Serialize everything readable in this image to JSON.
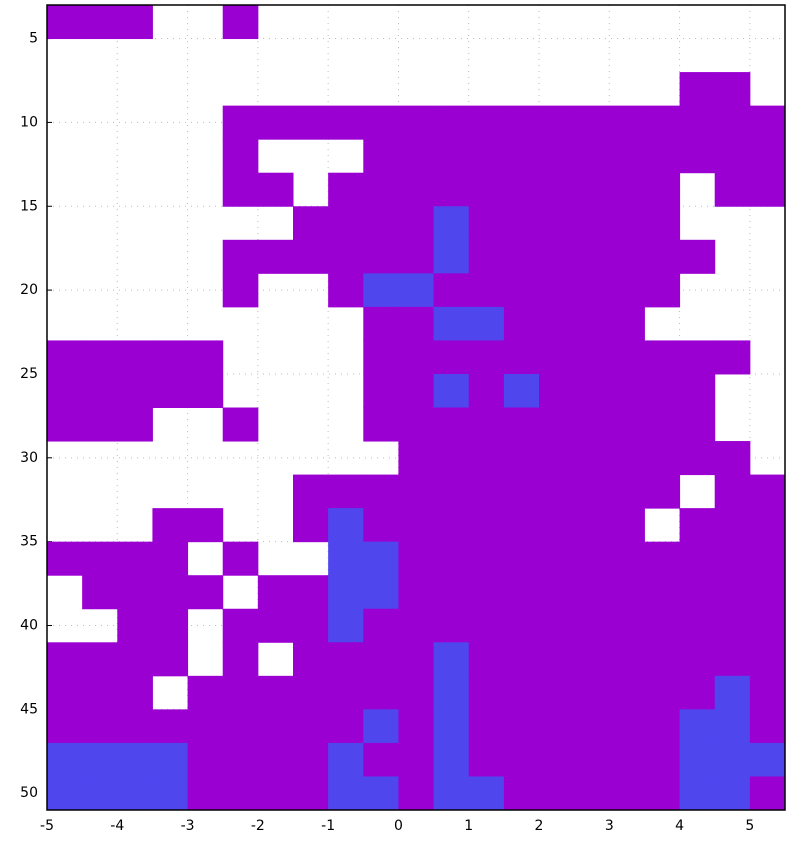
{
  "chart_data": {
    "type": "heatmap",
    "xlim": [
      -5,
      5.5
    ],
    "ylim": [
      3,
      51
    ],
    "y_inverted": true,
    "xticks": [
      -5,
      -4,
      -3,
      -2,
      -1,
      0,
      1,
      2,
      3,
      4,
      5
    ],
    "yticks": [
      5,
      10,
      15,
      20,
      25,
      30,
      35,
      40,
      45,
      50
    ],
    "grid": true,
    "colorscale": [
      "#ffffff",
      "#9b00d2",
      "#4f46ee"
    ],
    "xbins": [
      -5,
      -4.5,
      -4,
      -3.5,
      -3,
      -2.5,
      -2,
      -1.5,
      -1,
      -0.5,
      0,
      0.5,
      1,
      1.5,
      2,
      2.5,
      3,
      3.5,
      4,
      4.5,
      5,
      5.5
    ],
    "ybins": [
      3,
      5,
      7,
      9,
      11,
      13,
      15,
      17,
      19,
      21,
      23,
      25,
      27,
      29,
      31,
      33,
      35,
      37,
      39,
      41,
      43,
      45,
      47,
      49,
      51
    ],
    "z": [
      [
        1,
        1,
        1,
        0,
        0,
        1,
        0,
        0,
        0,
        0,
        0,
        0,
        0,
        0,
        0,
        0,
        0,
        0,
        0,
        0,
        0
      ],
      [
        0,
        0,
        0,
        0,
        0,
        0,
        0,
        0,
        0,
        0,
        0,
        0,
        0,
        0,
        0,
        0,
        0,
        0,
        0,
        0,
        0
      ],
      [
        0,
        0,
        0,
        0,
        0,
        0,
        0,
        0,
        0,
        0,
        0,
        0,
        0,
        0,
        0,
        0,
        0,
        0,
        1,
        1,
        0
      ],
      [
        0,
        0,
        0,
        0,
        0,
        1,
        1,
        1,
        1,
        1,
        1,
        1,
        1,
        1,
        1,
        1,
        1,
        1,
        1,
        1,
        1
      ],
      [
        0,
        0,
        0,
        0,
        0,
        1,
        0,
        0,
        0,
        1,
        1,
        1,
        1,
        1,
        1,
        1,
        1,
        1,
        1,
        1,
        1
      ],
      [
        0,
        0,
        0,
        0,
        0,
        1,
        1,
        0,
        1,
        1,
        1,
        1,
        1,
        1,
        1,
        1,
        1,
        1,
        0,
        1,
        1
      ],
      [
        0,
        0,
        0,
        0,
        0,
        0,
        0,
        1,
        1,
        1,
        1,
        2,
        1,
        1,
        1,
        1,
        1,
        1,
        0,
        0,
        0
      ],
      [
        0,
        0,
        0,
        0,
        0,
        1,
        1,
        1,
        1,
        1,
        1,
        2,
        1,
        1,
        1,
        1,
        1,
        1,
        1,
        0,
        0
      ],
      [
        0,
        0,
        0,
        0,
        0,
        1,
        0,
        0,
        1,
        2,
        2,
        1,
        1,
        1,
        1,
        1,
        1,
        1,
        0,
        0,
        0
      ],
      [
        0,
        0,
        0,
        0,
        0,
        0,
        0,
        0,
        0,
        1,
        1,
        2,
        2,
        1,
        1,
        1,
        1,
        0,
        0,
        0,
        0
      ],
      [
        1,
        1,
        1,
        1,
        1,
        0,
        0,
        0,
        0,
        1,
        1,
        1,
        1,
        1,
        1,
        1,
        1,
        1,
        1,
        1,
        0
      ],
      [
        1,
        1,
        1,
        1,
        1,
        0,
        0,
        0,
        0,
        1,
        1,
        2,
        1,
        2,
        1,
        1,
        1,
        1,
        1,
        0,
        0
      ],
      [
        1,
        1,
        1,
        0,
        0,
        1,
        0,
        0,
        0,
        1,
        1,
        1,
        1,
        1,
        1,
        1,
        1,
        1,
        1,
        0,
        0
      ],
      [
        0,
        0,
        0,
        0,
        0,
        0,
        0,
        0,
        0,
        0,
        1,
        1,
        1,
        1,
        1,
        1,
        1,
        1,
        1,
        1,
        0
      ],
      [
        0,
        0,
        0,
        0,
        0,
        0,
        0,
        1,
        1,
        1,
        1,
        1,
        1,
        1,
        1,
        1,
        1,
        1,
        0,
        1,
        1
      ],
      [
        0,
        0,
        0,
        1,
        1,
        0,
        0,
        1,
        2,
        1,
        1,
        1,
        1,
        1,
        1,
        1,
        1,
        0,
        1,
        1,
        1
      ],
      [
        1,
        1,
        1,
        1,
        0,
        1,
        0,
        0,
        2,
        2,
        1,
        1,
        1,
        1,
        1,
        1,
        1,
        1,
        1,
        1,
        1
      ],
      [
        0,
        1,
        1,
        1,
        1,
        0,
        1,
        1,
        2,
        2,
        1,
        1,
        1,
        1,
        1,
        1,
        1,
        1,
        1,
        1,
        1
      ],
      [
        0,
        0,
        1,
        1,
        0,
        1,
        1,
        1,
        2,
        1,
        1,
        1,
        1,
        1,
        1,
        1,
        1,
        1,
        1,
        1,
        1
      ],
      [
        1,
        1,
        1,
        1,
        0,
        1,
        0,
        1,
        1,
        1,
        1,
        2,
        1,
        1,
        1,
        1,
        1,
        1,
        1,
        1,
        1
      ],
      [
        1,
        1,
        1,
        0,
        1,
        1,
        1,
        1,
        1,
        1,
        1,
        2,
        1,
        1,
        1,
        1,
        1,
        1,
        1,
        2,
        1
      ],
      [
        1,
        1,
        1,
        1,
        1,
        1,
        1,
        1,
        1,
        2,
        1,
        2,
        1,
        1,
        1,
        1,
        1,
        1,
        2,
        2,
        1
      ],
      [
        2,
        2,
        2,
        2,
        1,
        1,
        1,
        1,
        2,
        1,
        1,
        2,
        1,
        1,
        1,
        1,
        1,
        1,
        2,
        2,
        2
      ],
      [
        2,
        2,
        2,
        2,
        1,
        1,
        1,
        1,
        2,
        2,
        1,
        2,
        2,
        1,
        1,
        1,
        1,
        1,
        2,
        2,
        1
      ]
    ]
  }
}
